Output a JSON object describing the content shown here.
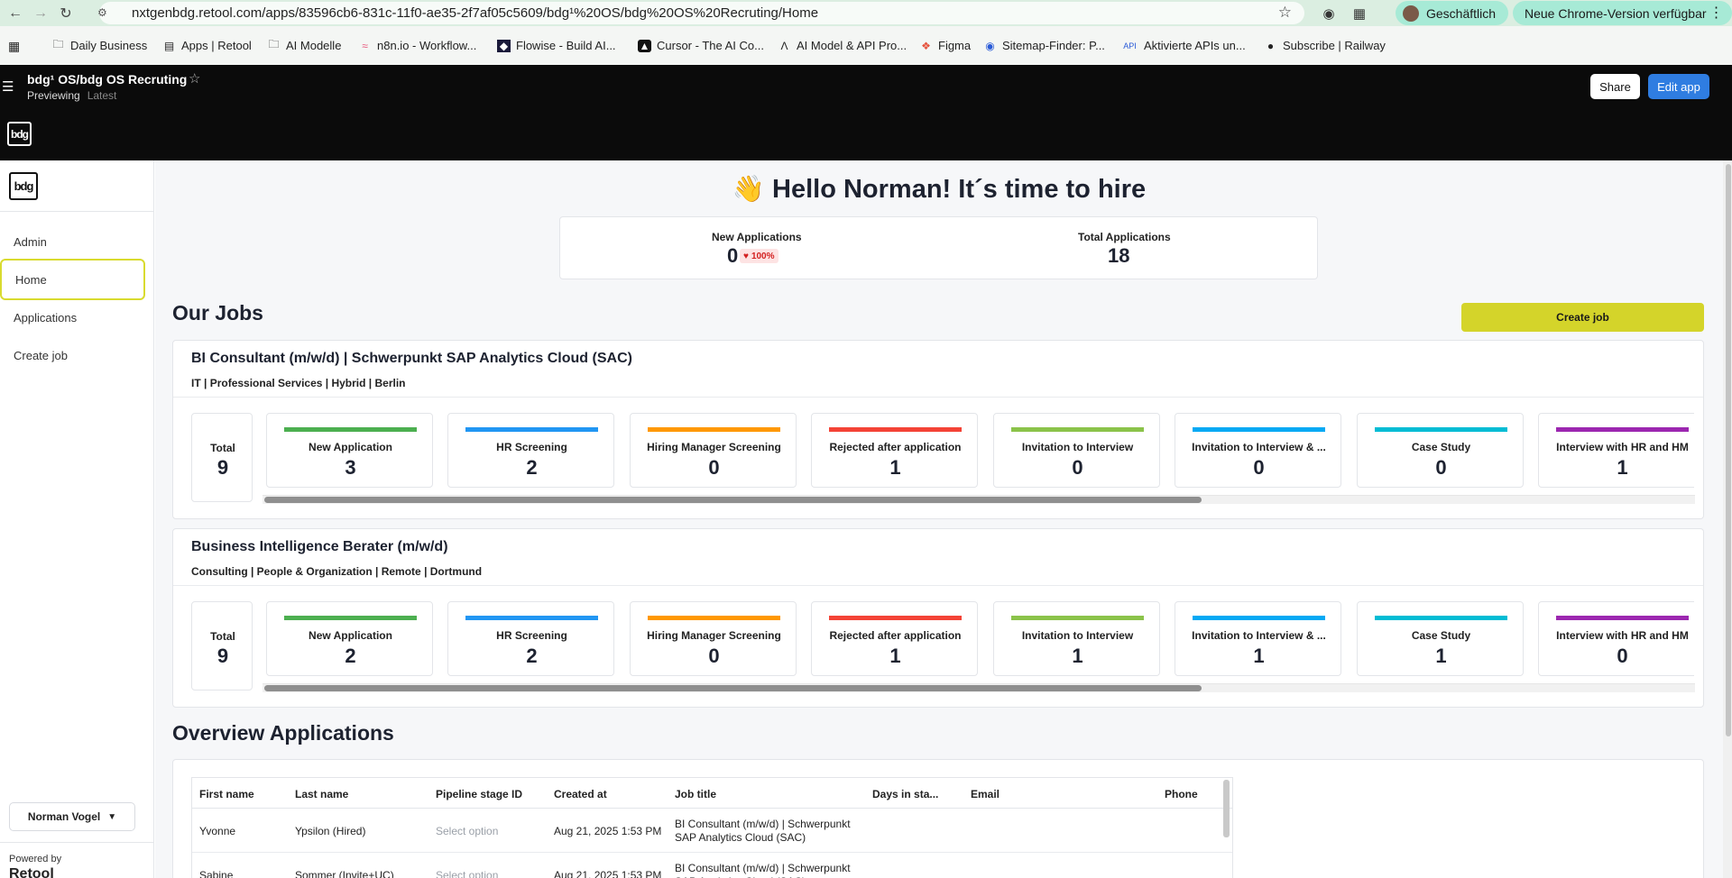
{
  "browser": {
    "url": "nxtgenbdg.retool.com/apps/83596cb6-831c-11f0-ae35-2f7af05c5609/bdg¹%20OS/bdg%20OS%20Recruting/Home",
    "profile": "Geschäftlich",
    "update": "Neue Chrome-Version verfügbar",
    "bookmarks": [
      "Daily Business",
      "Apps | Retool",
      "AI Modelle",
      "n8n.io - Workflow...",
      "Flowise - Build AI...",
      "Cursor - The AI Co...",
      "AI Model & API Pro...",
      "Figma",
      "Sitemap-Finder: P...",
      "Aktivierte APIs un...",
      "Subscribe | Railway"
    ]
  },
  "header": {
    "title": "bdg¹ OS/bdg OS Recruting",
    "mode": "Previewing",
    "version": "Latest",
    "share_label": "Share",
    "edit_label": "Edit app",
    "logo_text": "bdg"
  },
  "sidebar": {
    "logo_text": "bdg",
    "items": [
      {
        "label": "Admin"
      },
      {
        "label": "Home"
      },
      {
        "label": "Applications"
      },
      {
        "label": "Create job"
      }
    ],
    "user": "Norman Vogel",
    "powered_by": "Powered by",
    "brand": "Retool"
  },
  "main": {
    "greeting": "👋 Hello Norman! It´s time to hire",
    "kpis": {
      "new_label": "New Applications",
      "new_value": "0",
      "new_badge": "100%",
      "total_label": "Total Applications",
      "total_value": "18"
    },
    "jobs_title": "Our Jobs",
    "create_job_label": "Create job",
    "total_label": "Total",
    "jobs": [
      {
        "title": "BI Consultant (m/w/d) | Schwerpunkt SAP Analytics Cloud (SAC)",
        "meta": "IT | Professional Services | Hybrid | Berlin",
        "total": "9",
        "stages": [
          {
            "label": "New Application",
            "value": "3",
            "color": "#4caf50"
          },
          {
            "label": "HR Screening",
            "value": "2",
            "color": "#2196f3"
          },
          {
            "label": "Hiring Manager Screening",
            "value": "0",
            "color": "#ff9800"
          },
          {
            "label": "Rejected after application",
            "value": "1",
            "color": "#f44336"
          },
          {
            "label": "Invitation to Interview",
            "value": "0",
            "color": "#8bc34a"
          },
          {
            "label": "Invitation to Interview & ...",
            "value": "0",
            "color": "#03a9f4"
          },
          {
            "label": "Case Study",
            "value": "0",
            "color": "#00bcd4"
          },
          {
            "label": "Interview with HR and HM",
            "value": "1",
            "color": "#9c27b0"
          }
        ]
      },
      {
        "title": "Business Intelligence Berater (m/w/d)",
        "meta": "Consulting | People & Organization | Remote | Dortmund",
        "total": "9",
        "stages": [
          {
            "label": "New Application",
            "value": "2",
            "color": "#4caf50"
          },
          {
            "label": "HR Screening",
            "value": "2",
            "color": "#2196f3"
          },
          {
            "label": "Hiring Manager Screening",
            "value": "0",
            "color": "#ff9800"
          },
          {
            "label": "Rejected after application",
            "value": "1",
            "color": "#f44336"
          },
          {
            "label": "Invitation to Interview",
            "value": "1",
            "color": "#8bc34a"
          },
          {
            "label": "Invitation to Interview & ...",
            "value": "1",
            "color": "#03a9f4"
          },
          {
            "label": "Case Study",
            "value": "1",
            "color": "#00bcd4"
          },
          {
            "label": "Interview with HR and HM",
            "value": "0",
            "color": "#9c27b0"
          }
        ]
      }
    ],
    "overview_title": "Overview Applications",
    "table": {
      "columns": [
        "First name",
        "Last name",
        "Pipeline stage ID",
        "Created at",
        "Job title",
        "Days in sta...",
        "Email",
        "Phone"
      ],
      "rows": [
        {
          "first": "Yvonne",
          "last": "Ypsilon (Hired)",
          "stage": "Select option",
          "created": "Aug 21, 2025 1:53 PM",
          "job": "BI Consultant (m/w/d) | Schwerpunkt SAP Analytics Cloud (SAC)"
        },
        {
          "first": "Sabine",
          "last": "Sommer (Invite+UC)",
          "stage": "Select option",
          "created": "Aug 21, 2025 1:53 PM",
          "job": "BI Consultant (m/w/d) | Schwerpunkt SAP Analytics Cloud (SAC)"
        }
      ]
    }
  }
}
